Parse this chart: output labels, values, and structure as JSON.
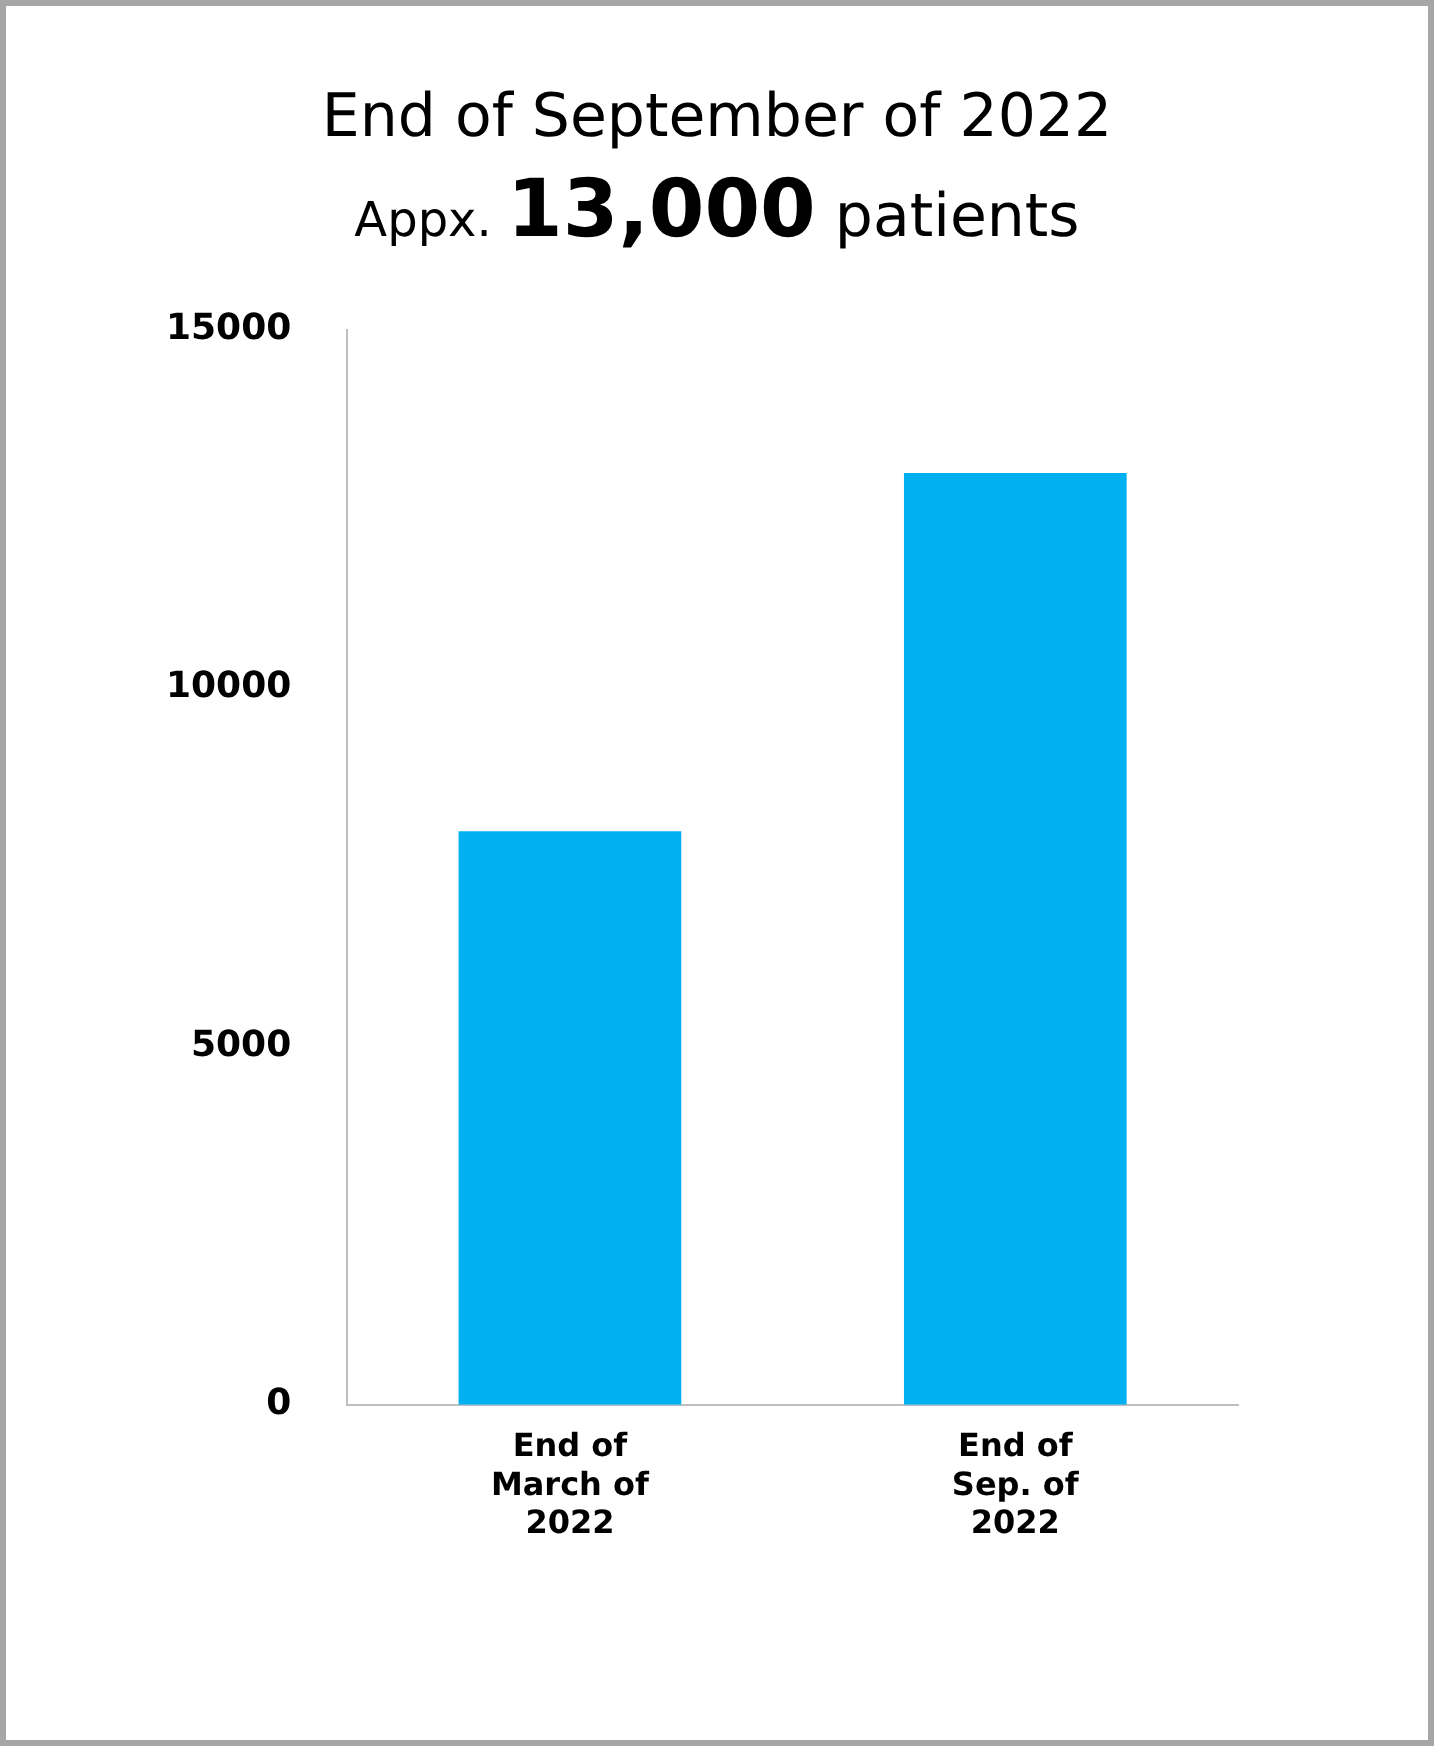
{
  "chart_data": {
    "type": "bar",
    "title": "End of September of 2022",
    "subtitle": "Appx. 13,000 patients",
    "categories": [
      "End of March of 2022",
      "End of Sep. of 2022"
    ],
    "values": [
      8000,
      13000
    ],
    "color": "#00b0f0",
    "ylim": [
      0,
      15000
    ],
    "yticks": [
      0,
      5000,
      10000,
      15000
    ],
    "grid": false,
    "legend": false
  }
}
